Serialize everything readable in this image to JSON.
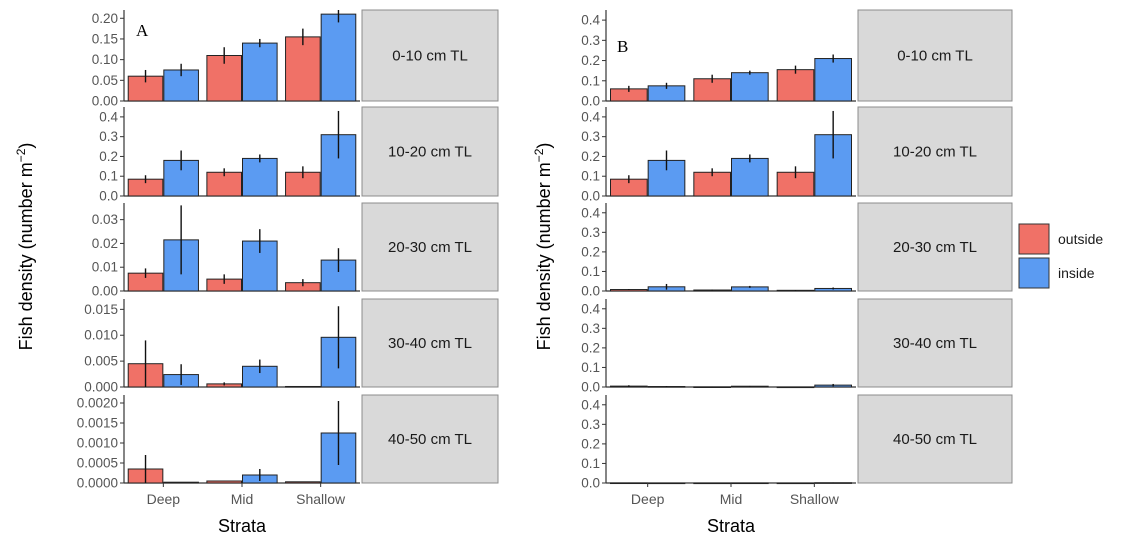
{
  "colors": {
    "outside": "#F07167",
    "inside": "#5B9BF2",
    "strip_bg": "#D9D9D9",
    "axis": "#333333"
  },
  "legend": {
    "items": [
      {
        "label": "outside",
        "color": "#F07167"
      },
      {
        "label": "inside",
        "color": "#5B9BF2"
      }
    ]
  },
  "chart_data": [
    {
      "type": "bar",
      "panel_label": "A",
      "xlabel": "Strata",
      "ylabel": "Fish density (number m",
      "ylabel_sup": "−2",
      "ylabel_close": ")",
      "categories": [
        "Deep",
        "Mid",
        "Shallow"
      ],
      "series_names": [
        "outside",
        "inside"
      ],
      "facets": [
        {
          "label": "0-10 cm TL",
          "ylim": [
            0,
            0.22
          ],
          "ticks": [
            "0.00",
            "0.05",
            "0.10",
            "0.15",
            "0.20"
          ],
          "tick_values": [
            0,
            0.05,
            0.1,
            0.15,
            0.2
          ],
          "outside": {
            "values": [
              0.06,
              0.11,
              0.155
            ],
            "err": [
              0.015,
              0.02,
              0.02
            ]
          },
          "inside": {
            "values": [
              0.075,
              0.14,
              0.21
            ],
            "err": [
              0.015,
              0.01,
              0.02
            ]
          }
        },
        {
          "label": "10-20 cm TL",
          "ylim": [
            0,
            0.45
          ],
          "ticks": [
            "0.0",
            "0.1",
            "0.2",
            "0.3",
            "0.4"
          ],
          "tick_values": [
            0,
            0.1,
            0.2,
            0.3,
            0.4
          ],
          "outside": {
            "values": [
              0.085,
              0.12,
              0.12
            ],
            "err": [
              0.02,
              0.02,
              0.03
            ]
          },
          "inside": {
            "values": [
              0.18,
              0.19,
              0.31
            ],
            "err": [
              0.05,
              0.02,
              0.12
            ]
          }
        },
        {
          "label": "20-30 cm TL",
          "ylim": [
            0,
            0.037
          ],
          "ticks": [
            "0.00",
            "0.01",
            "0.02",
            "0.03"
          ],
          "tick_values": [
            0,
            0.01,
            0.02,
            0.03
          ],
          "outside": {
            "values": [
              0.0075,
              0.005,
              0.0035
            ],
            "err": [
              0.002,
              0.002,
              0.0015
            ]
          },
          "inside": {
            "values": [
              0.0215,
              0.021,
              0.013
            ],
            "err": [
              0.0145,
              0.005,
              0.005
            ]
          }
        },
        {
          "label": "30-40 cm TL",
          "ylim": [
            0,
            0.017
          ],
          "ticks": [
            "0.000",
            "0.005",
            "0.010",
            "0.015"
          ],
          "tick_values": [
            0,
            0.005,
            0.01,
            0.015
          ],
          "outside": {
            "values": [
              0.0045,
              0.0006,
              0.0001
            ],
            "err": [
              0.0045,
              0.0003,
              0.0
            ]
          },
          "inside": {
            "values": [
              0.0024,
              0.004,
              0.0096
            ],
            "err": [
              0.002,
              0.0013,
              0.006
            ]
          }
        },
        {
          "label": "40-50 cm TL",
          "ylim": [
            0,
            0.0022
          ],
          "ticks": [
            "0.0000",
            "0.0005",
            "0.0010",
            "0.0015",
            "0.0020"
          ],
          "tick_values": [
            0,
            0.0005,
            0.001,
            0.0015,
            0.002
          ],
          "outside": {
            "values": [
              0.00035,
              5e-05,
              3e-05
            ],
            "err": [
              0.00035,
              0.0,
              0.0
            ]
          },
          "inside": {
            "values": [
              2e-05,
              0.0002,
              0.00125
            ],
            "err": [
              0.0,
              0.00015,
              0.0008
            ]
          }
        }
      ]
    },
    {
      "type": "bar",
      "panel_label": "B",
      "xlabel": "Strata",
      "ylabel": "Fish density (number m",
      "ylabel_sup": "−2",
      "ylabel_close": ")",
      "categories": [
        "Deep",
        "Mid",
        "Shallow"
      ],
      "series_names": [
        "outside",
        "inside"
      ],
      "facets": [
        {
          "label": "0-10 cm TL",
          "ylim": [
            0,
            0.45
          ],
          "ticks": [
            "0.0",
            "0.1",
            "0.2",
            "0.3",
            "0.4"
          ],
          "tick_values": [
            0,
            0.1,
            0.2,
            0.3,
            0.4
          ],
          "outside": {
            "values": [
              0.06,
              0.11,
              0.155
            ],
            "err": [
              0.015,
              0.02,
              0.02
            ]
          },
          "inside": {
            "values": [
              0.075,
              0.14,
              0.21
            ],
            "err": [
              0.015,
              0.01,
              0.02
            ]
          }
        },
        {
          "label": "10-20 cm TL",
          "ylim": [
            0,
            0.45
          ],
          "ticks": [
            "0.0",
            "0.1",
            "0.2",
            "0.3",
            "0.4"
          ],
          "tick_values": [
            0,
            0.1,
            0.2,
            0.3,
            0.4
          ],
          "outside": {
            "values": [
              0.085,
              0.12,
              0.12
            ],
            "err": [
              0.02,
              0.02,
              0.03
            ]
          },
          "inside": {
            "values": [
              0.18,
              0.19,
              0.31
            ],
            "err": [
              0.05,
              0.02,
              0.12
            ]
          }
        },
        {
          "label": "20-30 cm TL",
          "ylim": [
            0,
            0.45
          ],
          "ticks": [
            "0.0",
            "0.1",
            "0.2",
            "0.3",
            "0.4"
          ],
          "tick_values": [
            0,
            0.1,
            0.2,
            0.3,
            0.4
          ],
          "outside": {
            "values": [
              0.0075,
              0.005,
              0.0035
            ],
            "err": [
              0.002,
              0.002,
              0.0015
            ]
          },
          "inside": {
            "values": [
              0.0215,
              0.021,
              0.013
            ],
            "err": [
              0.0145,
              0.005,
              0.005
            ]
          }
        },
        {
          "label": "30-40 cm TL",
          "ylim": [
            0,
            0.45
          ],
          "ticks": [
            "0.0",
            "0.1",
            "0.2",
            "0.3",
            "0.4"
          ],
          "tick_values": [
            0,
            0.1,
            0.2,
            0.3,
            0.4
          ],
          "outside": {
            "values": [
              0.0045,
              0.0006,
              0.0001
            ],
            "err": [
              0.0045,
              0.0003,
              0.0
            ]
          },
          "inside": {
            "values": [
              0.0024,
              0.004,
              0.0096
            ],
            "err": [
              0.002,
              0.0013,
              0.006
            ]
          }
        },
        {
          "label": "40-50 cm TL",
          "ylim": [
            0,
            0.45
          ],
          "ticks": [
            "0.0",
            "0.1",
            "0.2",
            "0.3",
            "0.4"
          ],
          "tick_values": [
            0,
            0.1,
            0.2,
            0.3,
            0.4
          ],
          "outside": {
            "values": [
              0.00035,
              5e-05,
              3e-05
            ],
            "err": [
              0.00035,
              0.0,
              0.0
            ]
          },
          "inside": {
            "values": [
              2e-05,
              0.0002,
              0.00125
            ],
            "err": [
              0.0,
              0.00015,
              0.0008
            ]
          }
        }
      ]
    }
  ]
}
